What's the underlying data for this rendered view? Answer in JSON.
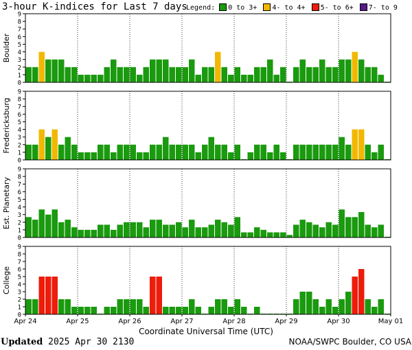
{
  "title": "3-hour K-indices for Last 7 days",
  "legend": {
    "label": "Legend:",
    "items": [
      {
        "label": "0 to 3+",
        "color": "#1a9a0e"
      },
      {
        "label": "4- to 4+",
        "color": "#f2b800"
      },
      {
        "label": "5- to 6+",
        "color": "#ee1c0b"
      },
      {
        "label": "7- to 9",
        "color": "#551a8b"
      }
    ]
  },
  "xlabel": "Coordinate Universal Time (UTC)",
  "footer": {
    "updated_label": "Updated",
    "updated_time": "2025 Apr 30 2130",
    "source": "NOAA/SWPC Boulder, CO USA"
  },
  "chart_data": {
    "type": "bar",
    "x_ticks": [
      "Apr 24",
      "Apr 25",
      "Apr 26",
      "Apr 27",
      "Apr 28",
      "Apr 29",
      "Apr 30",
      "May 01"
    ],
    "y_ticks": [
      0,
      1,
      2,
      3,
      4,
      5,
      6,
      7,
      8,
      9
    ],
    "ylim": [
      0,
      9
    ],
    "bins_per_day": 8,
    "panels": [
      {
        "ylabel": "Boulder",
        "values": [
          2,
          2,
          4,
          3,
          3,
          3,
          2,
          2,
          1,
          1,
          1,
          1,
          2,
          3,
          2,
          2,
          2,
          1,
          2,
          3,
          3,
          3,
          2,
          2,
          2,
          3,
          1,
          2,
          2,
          4,
          2,
          1,
          2,
          1,
          1,
          2,
          2,
          3,
          1,
          2,
          0,
          2,
          3,
          2,
          2,
          3,
          2,
          2,
          3,
          3,
          4,
          3,
          2,
          2,
          1,
          0
        ]
      },
      {
        "ylabel": "Fredericksburg",
        "values": [
          2,
          2,
          4,
          3,
          4,
          2,
          3,
          2,
          1,
          1,
          1,
          2,
          2,
          1,
          2,
          2,
          2,
          1,
          1,
          2,
          2,
          3,
          2,
          2,
          2,
          2,
          1,
          2,
          3,
          2,
          2,
          1,
          2,
          0,
          1,
          2,
          2,
          1,
          2,
          1,
          0,
          2,
          2,
          2,
          2,
          2,
          2,
          2,
          3,
          2,
          4,
          4,
          2,
          1,
          2,
          0
        ]
      },
      {
        "ylabel": "Est. Planetary",
        "values": [
          2.67,
          2.33,
          3.67,
          3,
          3.67,
          2,
          2.33,
          1.33,
          1,
          1,
          1,
          1.67,
          1.67,
          1,
          1.67,
          2,
          2,
          2,
          1.33,
          2.33,
          2.33,
          1.67,
          1.67,
          2,
          1.33,
          2.33,
          1.33,
          1.33,
          1.67,
          2.33,
          2,
          1.67,
          2.67,
          0.67,
          0.67,
          1.33,
          1,
          0.67,
          0.67,
          0.67,
          0.33,
          1.67,
          2.33,
          2,
          1.67,
          1.33,
          2,
          1.67,
          3.67,
          2.67,
          2.67,
          3.33,
          1.67,
          1.33,
          1.67,
          0
        ]
      },
      {
        "ylabel": "College",
        "values": [
          2,
          2,
          5,
          5,
          5,
          2,
          2,
          1,
          1,
          1,
          1,
          0,
          1,
          1,
          2,
          2,
          2,
          2,
          1,
          5,
          5,
          1,
          1,
          1,
          1,
          2,
          1,
          0,
          1,
          2,
          2,
          1,
          2,
          1,
          0,
          1,
          0,
          0,
          0,
          0,
          0,
          2,
          3,
          3,
          2,
          1,
          2,
          1,
          2,
          3,
          5,
          6,
          2,
          1,
          2,
          0
        ]
      }
    ]
  }
}
